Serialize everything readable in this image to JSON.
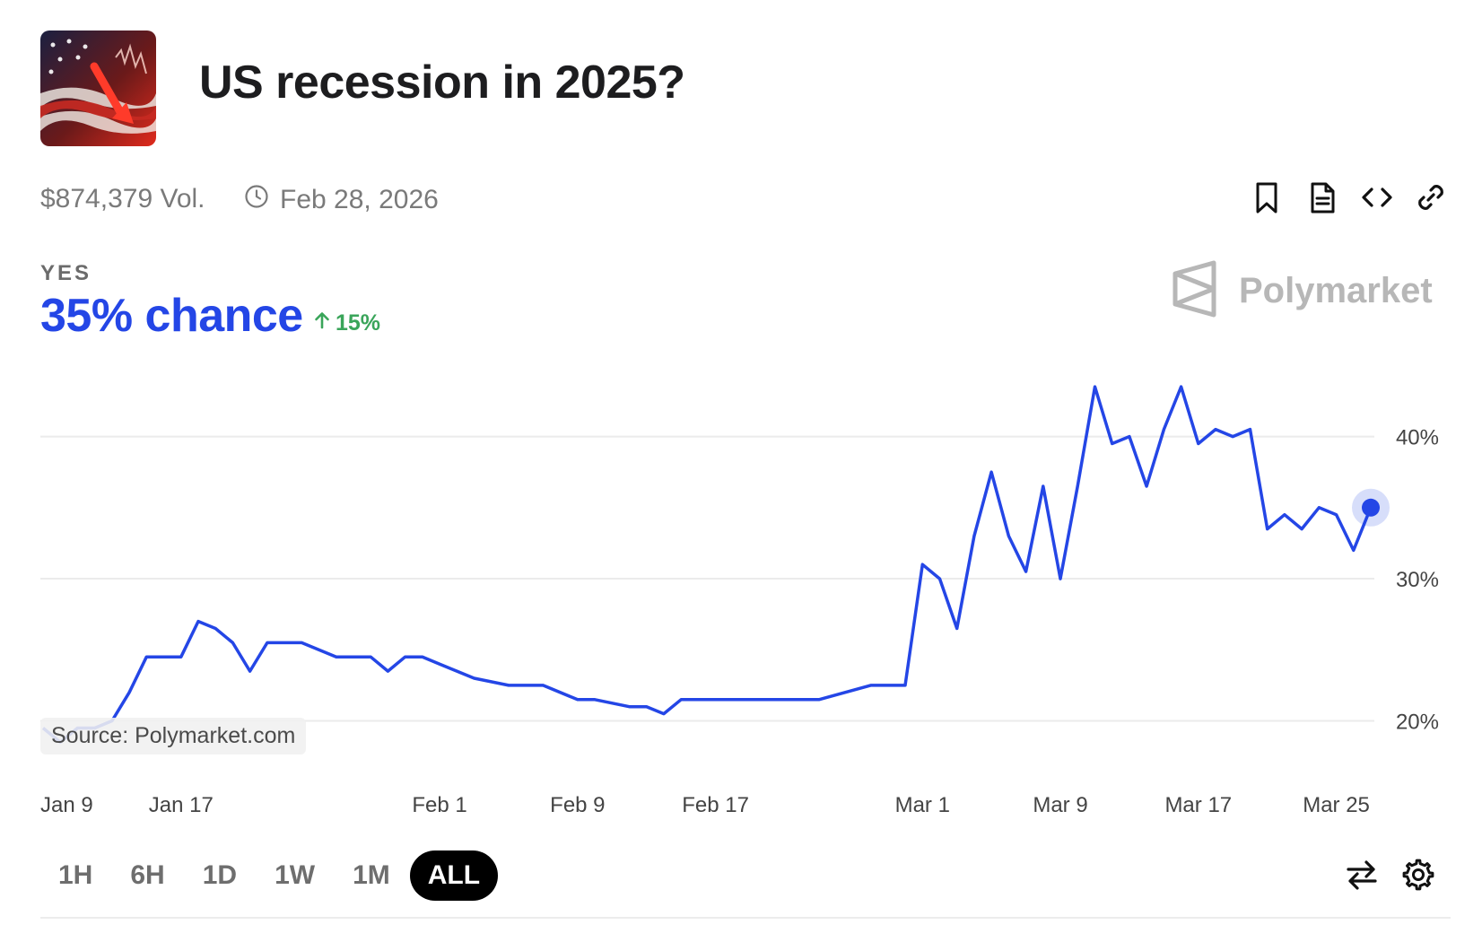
{
  "market": {
    "title": "US recession in 2025?",
    "volume": "$874,379 Vol.",
    "end_date": "Feb 28, 2026",
    "outcome_label": "YES",
    "chance": "35% chance",
    "change": "15%",
    "change_direction": "up"
  },
  "brand": {
    "name": "Polymarket"
  },
  "source_label": "Source: Polymarket.com",
  "toolbar": {
    "icons": [
      "bookmark-icon",
      "document-icon",
      "embed-code-icon",
      "link-icon"
    ]
  },
  "timeframes": {
    "options": [
      "1H",
      "6H",
      "1D",
      "1W",
      "1M",
      "ALL"
    ],
    "selected": "ALL"
  },
  "controls": {
    "icons": [
      "swap-icon",
      "settings-icon"
    ]
  },
  "colors": {
    "line": "#2446e6",
    "change": "#3aa55a",
    "brand_grey": "#b7b7b7"
  },
  "chart_data": {
    "type": "line",
    "series": [
      {
        "x": [
          "2025-01-09",
          "2025-01-10",
          "2025-01-11",
          "2025-01-12",
          "2025-01-13",
          "2025-01-14",
          "2025-01-15",
          "2025-01-16",
          "2025-01-17",
          "2025-01-18",
          "2025-01-19",
          "2025-01-20",
          "2025-01-21",
          "2025-01-22",
          "2025-01-23",
          "2025-01-24",
          "2025-01-26",
          "2025-01-28",
          "2025-01-29",
          "2025-01-30",
          "2025-01-31",
          "2025-02-01",
          "2025-02-02",
          "2025-02-03",
          "2025-02-05",
          "2025-02-07",
          "2025-02-09",
          "2025-02-10",
          "2025-02-12",
          "2025-02-13",
          "2025-02-14",
          "2025-02-15",
          "2025-02-16",
          "2025-02-17",
          "2025-02-20",
          "2025-02-23",
          "2025-02-26",
          "2025-02-28",
          "2025-03-01",
          "2025-03-02",
          "2025-03-03",
          "2025-03-04",
          "2025-03-05",
          "2025-03-06",
          "2025-03-07",
          "2025-03-08",
          "2025-03-09",
          "2025-03-10",
          "2025-03-11",
          "2025-03-12",
          "2025-03-13",
          "2025-03-14",
          "2025-03-15",
          "2025-03-16",
          "2025-03-17",
          "2025-03-18",
          "2025-03-19",
          "2025-03-20",
          "2025-03-21",
          "2025-03-22",
          "2025-03-23",
          "2025-03-24",
          "2025-03-25",
          "2025-03-26",
          "2025-03-27"
        ],
        "values": [
          19.5,
          18.5,
          19.5,
          19.5,
          20,
          22,
          24.5,
          24.5,
          24.5,
          27,
          26.5,
          25.5,
          23.5,
          25.5,
          25.5,
          25.5,
          24.5,
          24.5,
          23.5,
          24.5,
          24.5,
          24,
          23.5,
          23,
          22.5,
          22.5,
          21.5,
          21.5,
          21,
          21,
          20.5,
          21.5,
          21.5,
          21.5,
          21.5,
          21.5,
          22.5,
          22.5,
          31,
          30,
          26.5,
          33,
          37.5,
          33,
          30.5,
          36.5,
          30,
          36.5,
          43.5,
          39.5,
          40,
          36.5,
          40.5,
          43.5,
          39.5,
          40.5,
          40,
          40.5,
          33.5,
          34.5,
          33.5,
          35,
          34.5,
          32,
          35
        ],
        "last_value": 35
      }
    ],
    "x_tick_labels": [
      "Jan 9",
      "Jan 17",
      "Feb 1",
      "Feb 9",
      "Feb 17",
      "Mar 1",
      "Mar 9",
      "Mar 17",
      "Mar 25"
    ],
    "y_ticks": [
      20,
      30,
      40
    ],
    "y_tick_labels": [
      "20%",
      "30%",
      "40%"
    ],
    "ylim": [
      17.7,
      44.2
    ],
    "xlim": [
      "2025-01-09",
      "2025-03-27"
    ],
    "grid": true,
    "y_axis_side": "right",
    "legend": "none"
  }
}
